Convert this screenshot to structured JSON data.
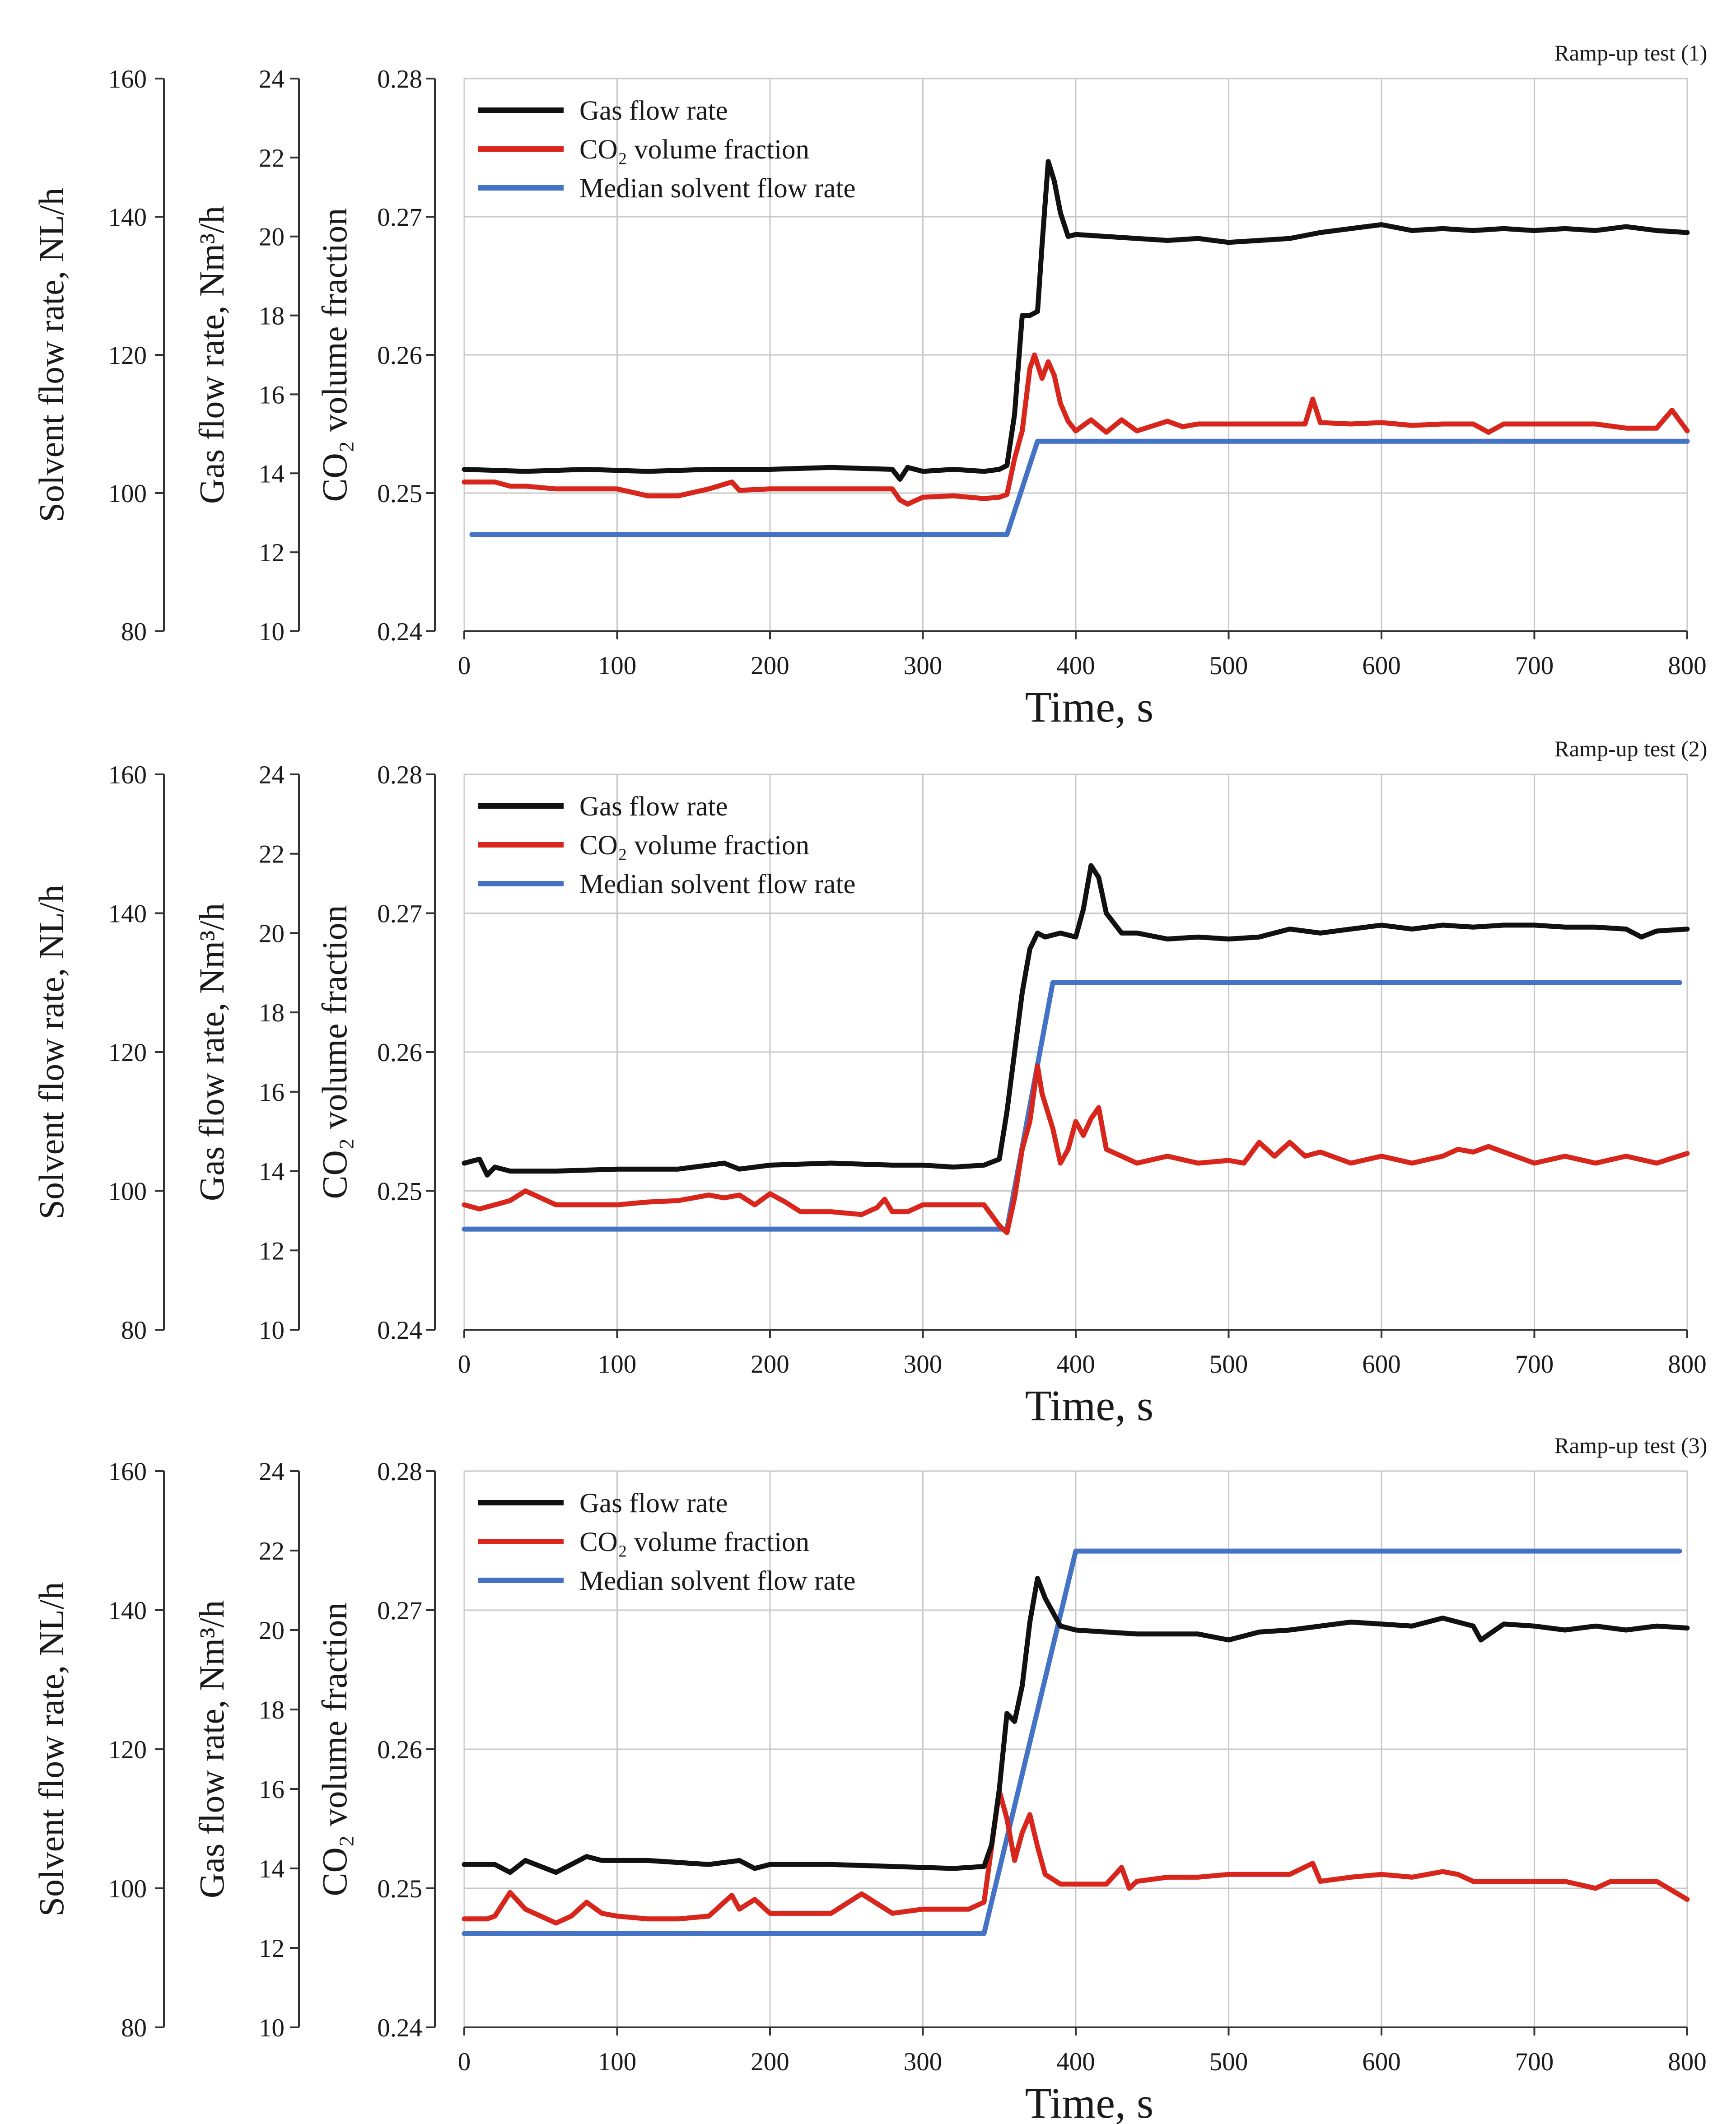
{
  "chart_data": [
    {
      "type": "line",
      "title": "Ramp-up test (1)",
      "xlabel": "Time, s",
      "xlim": [
        0,
        800
      ],
      "xticks": [
        0,
        100,
        200,
        300,
        400,
        500,
        600,
        700,
        800
      ],
      "xtick_labels": [
        "0",
        "100",
        "200",
        "300",
        "400",
        "500",
        "600",
        "700",
        "800"
      ],
      "grid": true,
      "legend_position": "top-left",
      "axes": [
        {
          "id": "solvent",
          "label": "Solvent flow rate, NL/h",
          "ylim": [
            80,
            160
          ],
          "ticks": [
            80,
            100,
            120,
            140,
            160
          ],
          "tick_labels": [
            "80",
            "100",
            "120",
            "140",
            "160"
          ]
        },
        {
          "id": "gas",
          "label": "Gas flow rate, Nm³/h",
          "ylim": [
            10,
            24
          ],
          "ticks": [
            10,
            12,
            14,
            16,
            18,
            20,
            22,
            24
          ],
          "tick_labels": [
            "10",
            "12",
            "14",
            "16",
            "18",
            "20",
            "22",
            "24"
          ]
        },
        {
          "id": "co2",
          "label": "CO₂ volume fraction",
          "ylim": [
            0.24,
            0.28
          ],
          "ticks": [
            0.24,
            0.25,
            0.26,
            0.27,
            0.28
          ],
          "tick_labels": [
            "0.24",
            "0.25",
            "0.26",
            "0.27",
            "0.28"
          ]
        }
      ],
      "series": [
        {
          "name": "Gas flow rate",
          "axis": "gas",
          "color": "#111111",
          "x": [
            0,
            40,
            80,
            120,
            160,
            200,
            240,
            280,
            285,
            290,
            300,
            320,
            340,
            350,
            355,
            360,
            365,
            370,
            375,
            378,
            382,
            386,
            390,
            395,
            400,
            420,
            440,
            460,
            480,
            500,
            520,
            540,
            560,
            580,
            600,
            620,
            640,
            660,
            680,
            700,
            720,
            740,
            760,
            780,
            800
          ],
          "y": [
            14.1,
            14.05,
            14.1,
            14.05,
            14.1,
            14.1,
            14.15,
            14.1,
            13.85,
            14.15,
            14.05,
            14.1,
            14.05,
            14.1,
            14.2,
            15.5,
            18.0,
            18.0,
            18.1,
            19.8,
            21.9,
            21.4,
            20.6,
            20.0,
            20.05,
            20.0,
            19.95,
            19.9,
            19.95,
            19.85,
            19.9,
            19.95,
            20.1,
            20.2,
            20.3,
            20.15,
            20.2,
            20.15,
            20.2,
            20.15,
            20.2,
            20.15,
            20.25,
            20.15,
            20.1
          ]
        },
        {
          "name": "CO₂ volume fraction",
          "axis": "co2",
          "color": "#d9261c",
          "x": [
            0,
            20,
            30,
            40,
            60,
            80,
            100,
            120,
            140,
            160,
            175,
            180,
            200,
            220,
            240,
            260,
            280,
            285,
            290,
            300,
            320,
            340,
            350,
            355,
            360,
            365,
            370,
            373,
            378,
            382,
            386,
            390,
            395,
            400,
            410,
            420,
            430,
            440,
            460,
            470,
            480,
            500,
            520,
            540,
            550,
            555,
            560,
            580,
            600,
            620,
            640,
            660,
            670,
            680,
            700,
            720,
            740,
            760,
            780,
            790,
            800
          ],
          "y": [
            0.2508,
            0.2508,
            0.2505,
            0.2505,
            0.2503,
            0.2503,
            0.2503,
            0.2498,
            0.2498,
            0.2503,
            0.2508,
            0.2502,
            0.2503,
            0.2503,
            0.2503,
            0.2503,
            0.2503,
            0.2495,
            0.2492,
            0.2497,
            0.2498,
            0.2496,
            0.2497,
            0.2499,
            0.2525,
            0.2545,
            0.259,
            0.26,
            0.2583,
            0.2595,
            0.2585,
            0.2565,
            0.2552,
            0.2545,
            0.2553,
            0.2544,
            0.2553,
            0.2545,
            0.2552,
            0.2548,
            0.255,
            0.255,
            0.255,
            0.255,
            0.255,
            0.2568,
            0.2551,
            0.255,
            0.2551,
            0.2549,
            0.255,
            0.255,
            0.2544,
            0.255,
            0.255,
            0.255,
            0.255,
            0.2547,
            0.2547,
            0.256,
            0.2545
          ]
        },
        {
          "name": "Median solvent flow rate",
          "axis": "solvent",
          "color": "#4472c4",
          "x": [
            5,
            355,
            375,
            800
          ],
          "y": [
            94,
            94,
            107.5,
            107.5
          ]
        }
      ]
    },
    {
      "type": "line",
      "title": "Ramp-up test (2)",
      "xlabel": "Time, s",
      "xlim": [
        0,
        800
      ],
      "xticks": [
        0,
        100,
        200,
        300,
        400,
        500,
        600,
        700,
        800
      ],
      "xtick_labels": [
        "0",
        "100",
        "200",
        "300",
        "400",
        "500",
        "600",
        "700",
        "800"
      ],
      "grid": true,
      "legend_position": "top-left",
      "axes": [
        {
          "id": "solvent",
          "label": "Solvent flow rate, NL/h",
          "ylim": [
            80,
            160
          ],
          "ticks": [
            80,
            100,
            120,
            140,
            160
          ],
          "tick_labels": [
            "80",
            "100",
            "120",
            "140",
            "160"
          ]
        },
        {
          "id": "gas",
          "label": "Gas flow rate, Nm³/h",
          "ylim": [
            10,
            24
          ],
          "ticks": [
            10,
            12,
            14,
            16,
            18,
            20,
            22,
            24
          ],
          "tick_labels": [
            "10",
            "12",
            "14",
            "16",
            "18",
            "20",
            "22",
            "24"
          ]
        },
        {
          "id": "co2",
          "label": "CO₂ volume fraction",
          "ylim": [
            0.24,
            0.28
          ],
          "ticks": [
            0.24,
            0.25,
            0.26,
            0.27,
            0.28
          ],
          "tick_labels": [
            "0.24",
            "0.25",
            "0.26",
            "0.27",
            "0.28"
          ]
        }
      ],
      "series": [
        {
          "name": "Gas flow rate",
          "axis": "gas",
          "color": "#111111",
          "x": [
            0,
            10,
            15,
            20,
            30,
            60,
            100,
            140,
            170,
            180,
            200,
            240,
            280,
            300,
            320,
            340,
            350,
            355,
            360,
            365,
            370,
            375,
            380,
            390,
            400,
            405,
            410,
            415,
            420,
            430,
            440,
            460,
            480,
            500,
            520,
            540,
            560,
            580,
            600,
            620,
            640,
            660,
            680,
            700,
            720,
            740,
            760,
            770,
            780,
            800
          ],
          "y": [
            14.2,
            14.3,
            13.9,
            14.1,
            14.0,
            14.0,
            14.05,
            14.05,
            14.2,
            14.05,
            14.15,
            14.2,
            14.15,
            14.15,
            14.1,
            14.15,
            14.3,
            15.5,
            17.0,
            18.5,
            19.6,
            20.0,
            19.9,
            20.0,
            19.9,
            20.6,
            21.7,
            21.4,
            20.5,
            20.0,
            20.0,
            19.85,
            19.9,
            19.85,
            19.9,
            20.1,
            20.0,
            20.1,
            20.2,
            20.1,
            20.2,
            20.15,
            20.2,
            20.2,
            20.15,
            20.15,
            20.1,
            19.9,
            20.05,
            20.1
          ]
        },
        {
          "name": "CO₂ volume fraction",
          "axis": "co2",
          "color": "#d9261c",
          "x": [
            0,
            10,
            20,
            30,
            40,
            50,
            60,
            80,
            100,
            120,
            140,
            160,
            170,
            180,
            190,
            200,
            210,
            220,
            240,
            260,
            270,
            275,
            280,
            290,
            300,
            320,
            340,
            350,
            355,
            360,
            365,
            370,
            375,
            378,
            385,
            390,
            395,
            400,
            405,
            410,
            415,
            420,
            440,
            460,
            480,
            500,
            510,
            520,
            530,
            540,
            550,
            560,
            580,
            600,
            620,
            640,
            650,
            660,
            670,
            680,
            700,
            720,
            740,
            760,
            780,
            800
          ],
          "y": [
            0.249,
            0.2487,
            0.249,
            0.2493,
            0.25,
            0.2495,
            0.249,
            0.249,
            0.249,
            0.2492,
            0.2493,
            0.2497,
            0.2495,
            0.2497,
            0.249,
            0.2498,
            0.2492,
            0.2485,
            0.2485,
            0.2483,
            0.2488,
            0.2494,
            0.2485,
            0.2485,
            0.249,
            0.249,
            0.249,
            0.2475,
            0.247,
            0.2495,
            0.253,
            0.255,
            0.259,
            0.257,
            0.2545,
            0.252,
            0.253,
            0.255,
            0.254,
            0.2552,
            0.256,
            0.253,
            0.252,
            0.2525,
            0.252,
            0.2522,
            0.252,
            0.2535,
            0.2525,
            0.2535,
            0.2525,
            0.2528,
            0.252,
            0.2525,
            0.252,
            0.2525,
            0.253,
            0.2528,
            0.2532,
            0.2528,
            0.252,
            0.2525,
            0.252,
            0.2525,
            0.252,
            0.2527
          ]
        },
        {
          "name": "Median solvent flow rate",
          "axis": "solvent",
          "color": "#4472c4",
          "x": [
            0,
            355,
            385,
            795
          ],
          "y": [
            94.5,
            94.5,
            130,
            130
          ]
        }
      ]
    },
    {
      "type": "line",
      "title": "Ramp-up test (3)",
      "xlabel": "Time, s",
      "xlim": [
        0,
        800
      ],
      "xticks": [
        0,
        100,
        200,
        300,
        400,
        500,
        600,
        700,
        800
      ],
      "xtick_labels": [
        "0",
        "100",
        "200",
        "300",
        "400",
        "500",
        "600",
        "700",
        "800"
      ],
      "grid": true,
      "legend_position": "top-left",
      "axes": [
        {
          "id": "solvent",
          "label": "Solvent flow rate, NL/h",
          "ylim": [
            80,
            160
          ],
          "ticks": [
            80,
            100,
            120,
            140,
            160
          ],
          "tick_labels": [
            "80",
            "100",
            "120",
            "140",
            "160"
          ]
        },
        {
          "id": "gas",
          "label": "Gas flow rate, Nm³/h",
          "ylim": [
            10,
            24
          ],
          "ticks": [
            10,
            12,
            14,
            16,
            18,
            20,
            22,
            24
          ],
          "tick_labels": [
            "10",
            "12",
            "14",
            "16",
            "18",
            "20",
            "22",
            "24"
          ]
        },
        {
          "id": "co2",
          "label": "CO₂ volume fraction",
          "ylim": [
            0.24,
            0.28
          ],
          "ticks": [
            0.24,
            0.25,
            0.26,
            0.27,
            0.28
          ],
          "tick_labels": [
            "0.24",
            "0.25",
            "0.26",
            "0.27",
            "0.28"
          ]
        }
      ],
      "series": [
        {
          "name": "Gas flow rate",
          "axis": "gas",
          "color": "#111111",
          "x": [
            0,
            20,
            30,
            40,
            60,
            80,
            90,
            120,
            160,
            180,
            190,
            200,
            240,
            280,
            320,
            340,
            345,
            350,
            355,
            360,
            365,
            370,
            375,
            380,
            390,
            400,
            440,
            480,
            500,
            520,
            540,
            560,
            580,
            600,
            620,
            640,
            660,
            665,
            680,
            700,
            720,
            740,
            760,
            780,
            800
          ],
          "y": [
            14.1,
            14.1,
            13.9,
            14.2,
            13.9,
            14.3,
            14.2,
            14.2,
            14.1,
            14.2,
            14.0,
            14.1,
            14.1,
            14.05,
            14.0,
            14.05,
            14.6,
            16.0,
            17.9,
            17.7,
            18.6,
            20.2,
            21.3,
            20.8,
            20.1,
            20.0,
            19.9,
            19.9,
            19.75,
            19.95,
            20.0,
            20.1,
            20.2,
            20.15,
            20.1,
            20.3,
            20.1,
            19.75,
            20.15,
            20.1,
            20.0,
            20.1,
            20.0,
            20.1,
            20.05
          ]
        },
        {
          "name": "CO₂ volume fraction",
          "axis": "co2",
          "color": "#d9261c",
          "x": [
            0,
            15,
            20,
            30,
            40,
            50,
            60,
            70,
            80,
            90,
            100,
            120,
            140,
            160,
            175,
            180,
            190,
            200,
            220,
            240,
            260,
            280,
            300,
            320,
            330,
            340,
            345,
            350,
            355,
            360,
            365,
            370,
            375,
            380,
            390,
            400,
            420,
            430,
            435,
            440,
            460,
            480,
            500,
            520,
            540,
            555,
            560,
            580,
            600,
            620,
            640,
            650,
            660,
            680,
            700,
            720,
            740,
            750,
            760,
            780,
            800
          ],
          "y": [
            0.2478,
            0.2478,
            0.248,
            0.2497,
            0.2485,
            0.248,
            0.2475,
            0.248,
            0.249,
            0.2482,
            0.248,
            0.2478,
            0.2478,
            0.248,
            0.2495,
            0.2485,
            0.2492,
            0.2482,
            0.2482,
            0.2482,
            0.2496,
            0.2482,
            0.2485,
            0.2485,
            0.2485,
            0.249,
            0.253,
            0.257,
            0.255,
            0.252,
            0.254,
            0.2553,
            0.253,
            0.251,
            0.2503,
            0.2503,
            0.2503,
            0.2515,
            0.25,
            0.2505,
            0.2508,
            0.2508,
            0.251,
            0.251,
            0.251,
            0.2518,
            0.2505,
            0.2508,
            0.251,
            0.2508,
            0.2512,
            0.251,
            0.2505,
            0.2505,
            0.2505,
            0.2505,
            0.25,
            0.2505,
            0.2505,
            0.2505,
            0.2492
          ]
        },
        {
          "name": "Median solvent flow rate",
          "axis": "solvent",
          "color": "#4472c4",
          "x": [
            0,
            340,
            400,
            795
          ],
          "y": [
            93.5,
            93.5,
            148.5,
            148.5
          ]
        }
      ]
    }
  ]
}
